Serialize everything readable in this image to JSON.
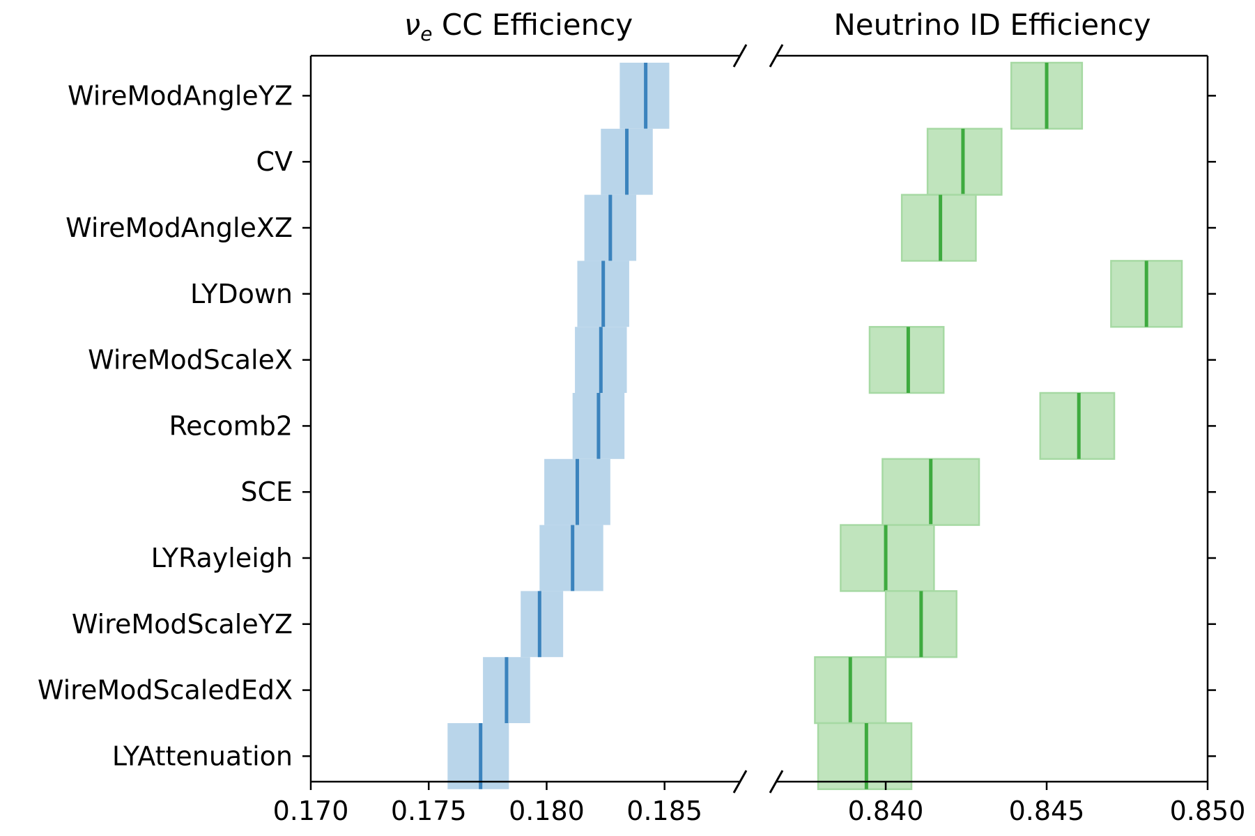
{
  "chart_data": {
    "type": "range_dot",
    "categories": [
      "WireModAngleYZ",
      "CV",
      "WireModAngleXZ",
      "LYDown",
      "WireModScaleX",
      "Recomb2",
      "SCE",
      "LYRayleigh",
      "WireModScaleYZ",
      "WireModScaledEdX",
      "LYAttenuation"
    ],
    "panels": [
      {
        "title_main": "ν",
        "title_sub": "e",
        "title_rest": " CC Efficiency",
        "xlim": [
          0.17,
          0.1882
        ],
        "xticks": [
          0.17,
          0.175,
          0.18,
          0.185
        ],
        "xtick_labels": [
          "0.170",
          "0.175",
          "0.180",
          "0.185"
        ],
        "color_band": "#b9d5ea",
        "color_line": "#3b83bd",
        "series": {
          "center": [
            0.1842,
            0.1834,
            0.1827,
            0.1824,
            0.1823,
            0.1822,
            0.1813,
            0.1811,
            0.1797,
            0.1783,
            0.1772
          ],
          "low": [
            0.1831,
            0.1823,
            0.1816,
            0.1813,
            0.1812,
            0.1811,
            0.1799,
            0.1797,
            0.1789,
            0.1773,
            0.1758
          ],
          "high": [
            0.1852,
            0.1845,
            0.1838,
            0.1835,
            0.1834,
            0.1833,
            0.1827,
            0.1824,
            0.1807,
            0.1793,
            0.1784
          ]
        }
      },
      {
        "title_main": "Neutrino ID Efficiency",
        "title_sub": "",
        "title_rest": "",
        "xlim": [
          0.8366,
          0.85
        ],
        "xticks": [
          0.84,
          0.845,
          0.85
        ],
        "xtick_labels": [
          "0.840",
          "0.845",
          "0.850"
        ],
        "color_band": "#c0e4bd",
        "color_line": "#3eaa3f",
        "series": {
          "center": [
            0.845,
            0.8424,
            0.8417,
            0.8481,
            0.8407,
            0.846,
            0.8414,
            0.84,
            0.8411,
            0.8389,
            0.8394
          ],
          "low": [
            0.8439,
            0.8413,
            0.8405,
            0.847,
            0.8395,
            0.8448,
            0.8399,
            0.8386,
            0.84,
            0.8378,
            0.8379
          ],
          "high": [
            0.8461,
            0.8436,
            0.8428,
            0.8492,
            0.8418,
            0.8471,
            0.8429,
            0.8415,
            0.8422,
            0.84,
            0.8408
          ]
        }
      }
    ]
  }
}
